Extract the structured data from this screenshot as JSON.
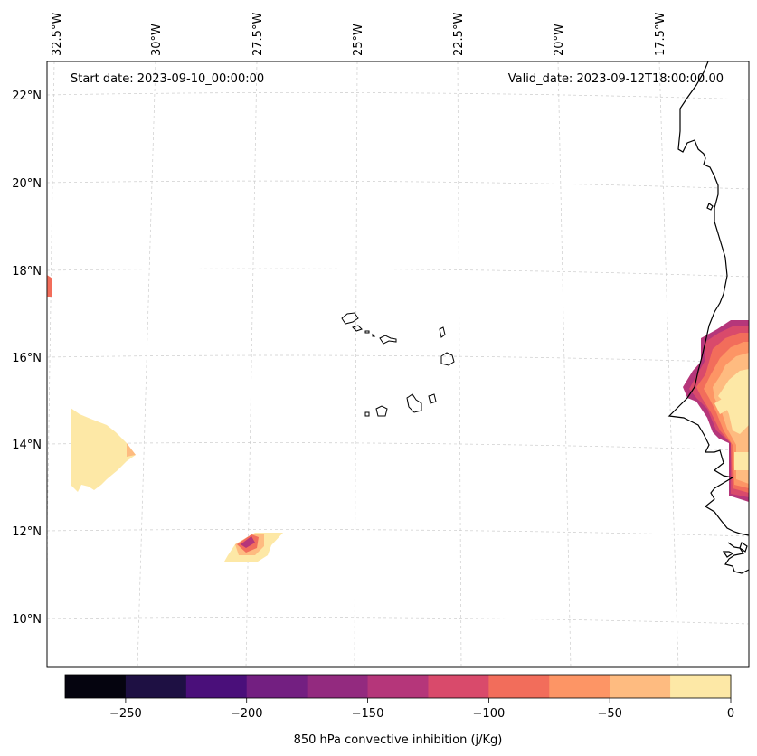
{
  "header": {
    "start_date": "Start date: 2023-09-10_00:00:00",
    "valid_date": "Valid_date: 2023-09-12T18:00:00.00"
  },
  "longitude_labels": [
    "32.5°W",
    "30°W",
    "27.5°W",
    "25°W",
    "22.5°W",
    "20°W",
    "17.5°W"
  ],
  "latitude_labels": [
    "22°N",
    "20°N",
    "18°N",
    "16°N",
    "14°N",
    "12°N",
    "10°N"
  ],
  "colorbar": {
    "label": "850 hPa convective inhibition (j/Kg)",
    "ticks": [
      "−250",
      "−200",
      "−150",
      "−100",
      "−50",
      "0"
    ],
    "range": [
      -275,
      0
    ],
    "levels": [
      {
        "from": -275,
        "to": -250,
        "color": "#05040f"
      },
      {
        "from": -250,
        "to": -225,
        "color": "#1e1043"
      },
      {
        "from": -225,
        "to": -200,
        "color": "#4a0f7a"
      },
      {
        "from": -200,
        "to": -175,
        "color": "#731f81"
      },
      {
        "from": -175,
        "to": -150,
        "color": "#932a7f"
      },
      {
        "from": -150,
        "to": -125,
        "color": "#b5367a"
      },
      {
        "from": -125,
        "to": -100,
        "color": "#d94a6b"
      },
      {
        "from": -100,
        "to": -75,
        "color": "#f26d5b"
      },
      {
        "from": -75,
        "to": -50,
        "color": "#fd9565"
      },
      {
        "from": -50,
        "to": -25,
        "color": "#febb80"
      },
      {
        "from": -25,
        "to": 0,
        "color": "#fde8a6"
      }
    ]
  }
}
